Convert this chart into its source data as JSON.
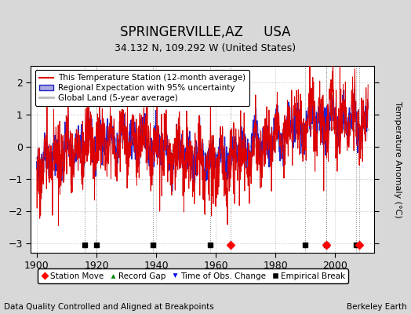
{
  "title": "SPRINGERVILLE,AZ     USA",
  "subtitle": "34.132 N, 109.292 W (United States)",
  "footer_left": "Data Quality Controlled and Aligned at Breakpoints",
  "footer_right": "Berkeley Earth",
  "ylabel": "Temperature Anomaly (°C)",
  "xlim": [
    1898,
    2013
  ],
  "ylim": [
    -3.3,
    2.5
  ],
  "yticks": [
    -3,
    -2,
    -1,
    0,
    1,
    2
  ],
  "xticks": [
    1900,
    1920,
    1940,
    1960,
    1980,
    2000
  ],
  "bg_color": "#d8d8d8",
  "plot_bg_color": "#ffffff",
  "station_color": "#dd0000",
  "regional_color": "#2222cc",
  "regional_fill_color": "#aaaadd",
  "global_color": "#bbbbbb",
  "empirical_breaks": [
    1916,
    1920,
    1939,
    1958,
    1990,
    1997,
    2007
  ],
  "station_moves": [
    1965,
    1997,
    2008
  ],
  "time_obs_changes": [],
  "record_gaps": [],
  "vline_color": "#888888",
  "legend_fontsize": 7.5,
  "tick_fontsize": 9,
  "title_fontsize": 12,
  "subtitle_fontsize": 9
}
